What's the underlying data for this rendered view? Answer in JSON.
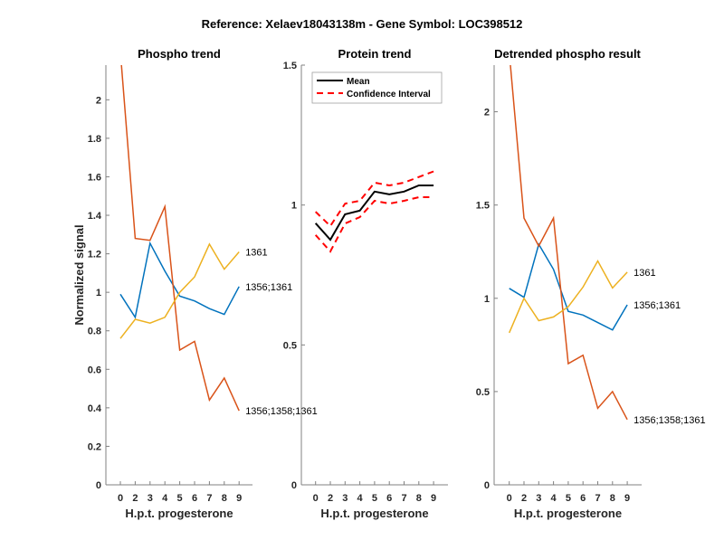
{
  "figure_title": "Reference:  Xelaev18043138m - Gene Symbol:  LOC398512",
  "chart_data": [
    {
      "type": "line",
      "title": "Phospho trend",
      "xlabel": "H.p.t. progesterone",
      "ylabel": "Normalized signal",
      "categories": [
        "0",
        "2",
        "3",
        "4",
        "5",
        "6",
        "7",
        "8",
        "9"
      ],
      "ylim": [
        0,
        2.18
      ],
      "yticks": [
        0,
        0.2,
        0.4,
        0.6,
        0.8,
        1,
        1.2,
        1.4,
        1.6,
        1.8,
        2
      ],
      "ytick_labels": [
        "0",
        "0.2",
        "0.4",
        "0.6",
        "0.8",
        "1",
        "1.2",
        "1.4",
        "1.6",
        "1.8",
        "2"
      ],
      "grid": false,
      "series": [
        {
          "name": "1356;1361",
          "color": "#0072BD",
          "values": [
            0.99,
            0.87,
            1.255,
            1.11,
            0.98,
            0.955,
            0.915,
            0.885,
            1.03
          ],
          "label": "1356;1361"
        },
        {
          "name": "1356;1358;1361",
          "color": "#D95319",
          "values": [
            2.25,
            1.28,
            1.27,
            1.445,
            0.7,
            0.745,
            0.44,
            0.555,
            0.385
          ],
          "label": "1356;1358;1361"
        },
        {
          "name": "1361",
          "color": "#EDB120",
          "values": [
            0.76,
            0.86,
            0.84,
            0.87,
            1.0,
            1.08,
            1.25,
            1.12,
            1.21
          ],
          "label": "1361"
        }
      ]
    },
    {
      "type": "line",
      "title": "Protein trend",
      "xlabel": "H.p.t. progesterone",
      "ylabel": "",
      "categories": [
        "0",
        "2",
        "3",
        "4",
        "5",
        "6",
        "7",
        "8",
        "9"
      ],
      "ylim": [
        0,
        1.5
      ],
      "yticks": [
        0,
        0.5,
        1,
        1.5
      ],
      "ytick_labels": [
        "0",
        "0.5",
        "1",
        "1.5"
      ],
      "grid": false,
      "legend": {
        "position": "top-left",
        "entries": [
          "Mean",
          "Confidence Interval"
        ]
      },
      "series": [
        {
          "name": "Mean",
          "color": "#000000",
          "style": "solid",
          "values": [
            0.935,
            0.876,
            0.967,
            0.98,
            1.048,
            1.038,
            1.048,
            1.07,
            1.07
          ]
        },
        {
          "name": "Confidence Interval (upper)",
          "color": "#FF0000",
          "style": "dashed",
          "values": [
            0.976,
            0.925,
            1.005,
            1.015,
            1.08,
            1.07,
            1.08,
            1.1,
            1.12
          ]
        },
        {
          "name": "Confidence Interval (lower)",
          "color": "#FF0000",
          "style": "dashed",
          "values": [
            0.893,
            0.834,
            0.934,
            0.957,
            1.015,
            1.005,
            1.015,
            1.028,
            1.028
          ]
        }
      ]
    },
    {
      "type": "line",
      "title": "Detrended phospho result",
      "xlabel": "H.p.t. progesterone",
      "ylabel": "",
      "categories": [
        "0",
        "2",
        "3",
        "4",
        "5",
        "6",
        "7",
        "8",
        "9"
      ],
      "ylim": [
        0,
        2.25
      ],
      "yticks": [
        0,
        0.5,
        1,
        1.5,
        2
      ],
      "ytick_labels": [
        "0",
        "0.5",
        "1",
        "1.5",
        "2"
      ],
      "grid": false,
      "series": [
        {
          "name": "1356;1361",
          "color": "#0072BD",
          "values": [
            1.053,
            1.005,
            1.29,
            1.155,
            0.93,
            0.91,
            0.87,
            0.83,
            0.965
          ],
          "label": "1356;1361"
        },
        {
          "name": "1356;1358;1361",
          "color": "#D95319",
          "values": [
            2.32,
            1.43,
            1.28,
            1.43,
            0.65,
            0.695,
            0.41,
            0.5,
            0.35
          ],
          "label": "1356;1358;1361"
        },
        {
          "name": "1361",
          "color": "#EDB120",
          "values": [
            0.815,
            1.0,
            0.88,
            0.9,
            0.955,
            1.06,
            1.2,
            1.055,
            1.14
          ],
          "label": "1361"
        }
      ]
    }
  ]
}
